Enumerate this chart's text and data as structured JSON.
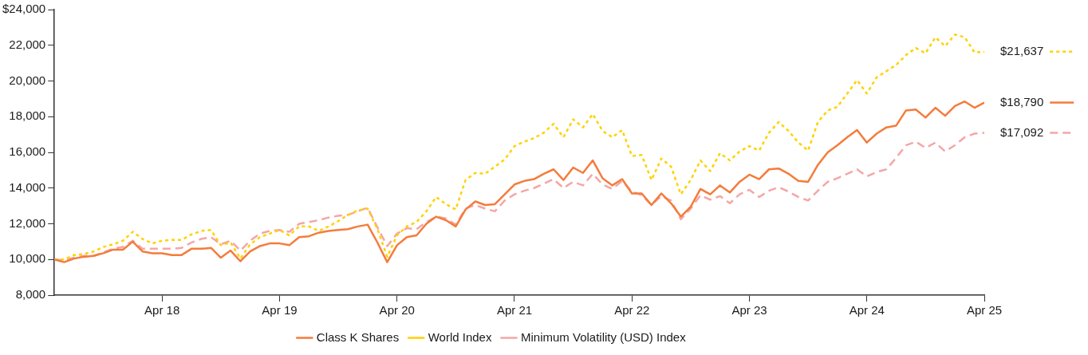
{
  "chart_data": {
    "type": "line",
    "x": [
      "2017-05",
      "2017-06",
      "2017-07",
      "2017-08",
      "2017-09",
      "2017-10",
      "2017-11",
      "2017-12",
      "2018-01",
      "2018-02",
      "2018-03",
      "2018-04",
      "2018-05",
      "2018-06",
      "2018-07",
      "2018-08",
      "2018-09",
      "2018-10",
      "2018-11",
      "2018-12",
      "2019-01",
      "2019-02",
      "2019-03",
      "2019-04",
      "2019-05",
      "2019-06",
      "2019-07",
      "2019-08",
      "2019-09",
      "2019-10",
      "2019-11",
      "2019-12",
      "2020-01",
      "2020-02",
      "2020-03",
      "2020-04",
      "2020-05",
      "2020-06",
      "2020-07",
      "2020-08",
      "2020-09",
      "2020-10",
      "2020-11",
      "2020-12",
      "2021-01",
      "2021-02",
      "2021-03",
      "2021-04",
      "2021-05",
      "2021-06",
      "2021-07",
      "2021-08",
      "2021-09",
      "2021-10",
      "2021-11",
      "2021-12",
      "2022-01",
      "2022-02",
      "2022-03",
      "2022-04",
      "2022-05",
      "2022-06",
      "2022-07",
      "2022-08",
      "2022-09",
      "2022-10",
      "2022-11",
      "2022-12",
      "2023-01",
      "2023-02",
      "2023-03",
      "2023-04",
      "2023-05",
      "2023-06",
      "2023-07",
      "2023-08",
      "2023-09",
      "2023-10",
      "2023-11",
      "2023-12",
      "2024-01",
      "2024-02",
      "2024-03",
      "2024-04",
      "2024-05",
      "2024-06",
      "2024-07",
      "2024-08",
      "2024-09",
      "2024-10",
      "2024-11",
      "2024-12",
      "2025-01",
      "2025-02",
      "2025-03",
      "2025-04"
    ],
    "series": [
      {
        "name": "Class K Shares",
        "color": "#f47c3c",
        "line_style": "solid",
        "values": [
          10000,
          9850,
          10050,
          10150,
          10200,
          10350,
          10550,
          10550,
          11000,
          10450,
          10350,
          10350,
          10250,
          10250,
          10600,
          10600,
          10650,
          10100,
          10500,
          9900,
          10450,
          10750,
          10900,
          10900,
          10800,
          11250,
          11300,
          11500,
          11600,
          11650,
          11700,
          11850,
          11950,
          10950,
          9850,
          10800,
          11250,
          11350,
          12000,
          12400,
          12200,
          11850,
          12800,
          13250,
          13050,
          13100,
          13650,
          14200,
          14400,
          14500,
          14800,
          15050,
          14450,
          15150,
          14850,
          15550,
          14550,
          14150,
          14500,
          13700,
          13700,
          13050,
          13700,
          13150,
          12400,
          12950,
          13950,
          13650,
          14150,
          13750,
          14350,
          14750,
          14500,
          15050,
          15100,
          14800,
          14400,
          14350,
          15300,
          16000,
          16400,
          16850,
          17250,
          16550,
          17050,
          17400,
          17500,
          18350,
          18400,
          17950,
          18500,
          18050,
          18600,
          18850,
          18500,
          18790
        ]
      },
      {
        "name": "World Index",
        "color": "#ffd200",
        "line_style": "dotted",
        "values": [
          10000,
          10000,
          10250,
          10300,
          10450,
          10700,
          10850,
          11050,
          11550,
          11150,
          10900,
          11050,
          11100,
          11100,
          11400,
          11600,
          11650,
          10800,
          10950,
          10050,
          10850,
          11250,
          11450,
          11650,
          11350,
          11850,
          11850,
          11600,
          11850,
          12150,
          12500,
          12750,
          12850,
          11700,
          10150,
          11350,
          11850,
          12100,
          12700,
          13500,
          13100,
          12800,
          14450,
          14850,
          14800,
          15200,
          15600,
          16350,
          16600,
          16800,
          17100,
          17600,
          16850,
          17850,
          17400,
          18150,
          17200,
          16850,
          17250,
          15800,
          15850,
          14450,
          15650,
          15200,
          13650,
          14450,
          15550,
          14950,
          15950,
          15550,
          16050,
          16350,
          16100,
          17100,
          17700,
          17200,
          16550,
          16100,
          17700,
          18350,
          18550,
          19300,
          20050,
          19300,
          20200,
          20550,
          20900,
          21450,
          21850,
          21550,
          22450,
          21950,
          22600,
          22450,
          21600,
          21637
        ]
      },
      {
        "name": "Minimum Volatility (USD) Index",
        "color": "#f4a6a6",
        "line_style": "dashed",
        "values": [
          10000,
          9950,
          10100,
          10200,
          10200,
          10400,
          10600,
          10700,
          11050,
          10600,
          10600,
          10600,
          10600,
          10650,
          10950,
          11150,
          11250,
          10850,
          11050,
          10500,
          11050,
          11450,
          11600,
          11650,
          11550,
          12000,
          12100,
          12200,
          12350,
          12450,
          12500,
          12700,
          12900,
          11800,
          10750,
          11450,
          11750,
          11700,
          12100,
          12400,
          12300,
          11950,
          12850,
          13050,
          12850,
          12700,
          13300,
          13650,
          13850,
          14000,
          14250,
          14500,
          14000,
          14350,
          14150,
          14800,
          14200,
          13950,
          14400,
          13800,
          13600,
          13050,
          13550,
          13300,
          12250,
          12850,
          13600,
          13350,
          13550,
          13150,
          13650,
          13900,
          13500,
          13850,
          14050,
          13800,
          13500,
          13300,
          13850,
          14350,
          14550,
          14800,
          15050,
          14650,
          14900,
          15050,
          15700,
          16400,
          16600,
          16250,
          16550,
          16050,
          16400,
          16850,
          17050,
          17092
        ]
      }
    ],
    "xlim": [
      "2017-05",
      "2025-04"
    ],
    "xticks": [
      {
        "value": "2018-04",
        "label": "Apr 18"
      },
      {
        "value": "2019-04",
        "label": "Apr 19"
      },
      {
        "value": "2020-04",
        "label": "Apr 20"
      },
      {
        "value": "2021-04",
        "label": "Apr 21"
      },
      {
        "value": "2022-04",
        "label": "Apr 22"
      },
      {
        "value": "2023-04",
        "label": "Apr 23"
      },
      {
        "value": "2024-04",
        "label": "Apr 24"
      },
      {
        "value": "2025-04",
        "label": "Apr 25"
      }
    ],
    "ylim": [
      8000,
      24000
    ],
    "yticks": [
      {
        "value": 8000,
        "label": "8,000"
      },
      {
        "value": 10000,
        "label": "10,000"
      },
      {
        "value": 12000,
        "label": "12,000"
      },
      {
        "value": 14000,
        "label": "14,000"
      },
      {
        "value": 16000,
        "label": "16,000"
      },
      {
        "value": 18000,
        "label": "18,000"
      },
      {
        "value": 20000,
        "label": "20,000"
      },
      {
        "value": 22000,
        "label": "22,000"
      },
      {
        "value": 24000,
        "label": "$24,000"
      }
    ],
    "annotations": [
      {
        "text": "$21,637",
        "x": "2025-04",
        "y": 21637
      },
      {
        "text": "$18,790",
        "x": "2025-04",
        "y": 18790
      },
      {
        "text": "$17,092",
        "x": "2025-04",
        "y": 17092
      }
    ],
    "grid": false,
    "legend": "bottom",
    "marker": "none"
  }
}
